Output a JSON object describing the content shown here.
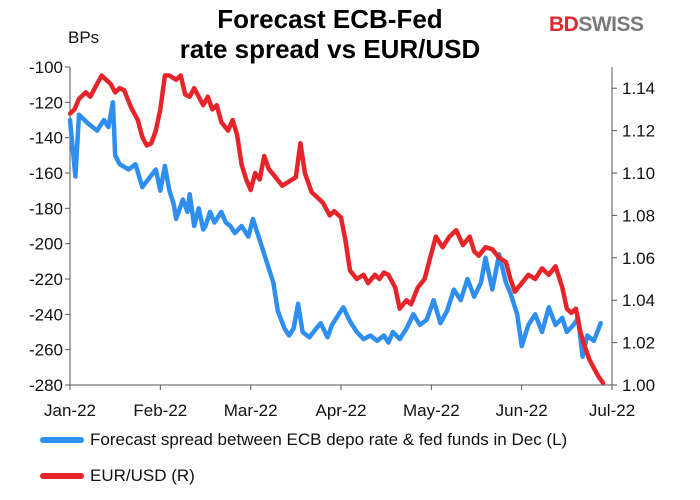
{
  "header": {
    "title_line1": "Forecast ECB-Fed",
    "title_line2": "rate spread vs EUR/USD",
    "unit_label": "BPs"
  },
  "logo": {
    "part1": "BD",
    "part2": "SWISS"
  },
  "chart_data": {
    "type": "line",
    "title": "Forecast ECB-Fed rate spread vs EUR/USD",
    "ylabel_left": "BPs",
    "x_ticks": [
      "Jan-22",
      "Feb-22",
      "Mar-22",
      "Apr-22",
      "May-22",
      "Jun-22",
      "Jul-22"
    ],
    "y_left": {
      "min": -280,
      "max": -100,
      "ticks": [
        -100,
        -120,
        -140,
        -160,
        -180,
        -200,
        -220,
        -240,
        -260,
        -280
      ]
    },
    "y_right": {
      "min": 1.0,
      "max": 1.15,
      "ticks": [
        "1.14",
        "1.12",
        "1.10",
        "1.08",
        "1.06",
        "1.04",
        "1.02",
        "1.00"
      ]
    },
    "grid": false,
    "legend_position": "bottom",
    "colors": {
      "spread": "#2f8ff0",
      "eurusd": "#e8242b"
    },
    "series": [
      {
        "name": "Forecast spread between ECB depo rate & fed funds in Dec (L)",
        "axis": "left",
        "color": "#2f8ff0",
        "points": [
          [
            0.0,
            -130
          ],
          [
            0.12,
            -162
          ],
          [
            0.2,
            -127
          ],
          [
            0.4,
            -132
          ],
          [
            0.6,
            -136
          ],
          [
            0.75,
            -130
          ],
          [
            0.85,
            -134
          ],
          [
            0.95,
            -120
          ],
          [
            1.0,
            -150
          ],
          [
            1.1,
            -155
          ],
          [
            1.3,
            -158
          ],
          [
            1.45,
            -155
          ],
          [
            1.6,
            -168
          ],
          [
            1.75,
            -163
          ],
          [
            1.9,
            -158
          ],
          [
            2.0,
            -170
          ],
          [
            2.1,
            -156
          ],
          [
            2.2,
            -170
          ],
          [
            2.3,
            -178
          ],
          [
            2.35,
            -186
          ],
          [
            2.5,
            -175
          ],
          [
            2.6,
            -182
          ],
          [
            2.65,
            -172
          ],
          [
            2.75,
            -190
          ],
          [
            2.85,
            -180
          ],
          [
            2.95,
            -192
          ],
          [
            3.0,
            -190
          ],
          [
            3.1,
            -182
          ],
          [
            3.2,
            -188
          ],
          [
            3.35,
            -182
          ],
          [
            3.45,
            -188
          ],
          [
            3.55,
            -190
          ],
          [
            3.65,
            -194
          ],
          [
            3.8,
            -190
          ],
          [
            3.95,
            -196
          ],
          [
            4.05,
            -186
          ],
          [
            4.2,
            -198
          ],
          [
            4.35,
            -210
          ],
          [
            4.5,
            -222
          ],
          [
            4.6,
            -238
          ],
          [
            4.75,
            -248
          ],
          [
            4.85,
            -252
          ],
          [
            4.95,
            -248
          ],
          [
            5.05,
            -234
          ],
          [
            5.15,
            -250
          ],
          [
            5.3,
            -253
          ],
          [
            5.45,
            -248
          ],
          [
            5.55,
            -245
          ],
          [
            5.7,
            -253
          ],
          [
            5.8,
            -246
          ],
          [
            5.95,
            -240
          ],
          [
            6.05,
            -236
          ],
          [
            6.2,
            -244
          ],
          [
            6.35,
            -250
          ],
          [
            6.5,
            -254
          ],
          [
            6.65,
            -252
          ],
          [
            6.8,
            -255
          ],
          [
            6.95,
            -252
          ],
          [
            7.05,
            -256
          ],
          [
            7.15,
            -250
          ],
          [
            7.3,
            -254
          ],
          [
            7.45,
            -248
          ],
          [
            7.6,
            -240
          ],
          [
            7.75,
            -246
          ],
          [
            7.9,
            -243
          ],
          [
            8.05,
            -232
          ],
          [
            8.2,
            -245
          ],
          [
            8.35,
            -238
          ],
          [
            8.5,
            -226
          ],
          [
            8.65,
            -232
          ],
          [
            8.8,
            -220
          ],
          [
            8.95,
            -230
          ],
          [
            9.1,
            -222
          ],
          [
            9.2,
            -208
          ],
          [
            9.35,
            -226
          ],
          [
            9.5,
            -206
          ],
          [
            9.65,
            -222
          ],
          [
            9.75,
            -228
          ],
          [
            9.9,
            -240
          ],
          [
            10.0,
            -258
          ],
          [
            10.15,
            -246
          ],
          [
            10.3,
            -240
          ],
          [
            10.45,
            -250
          ],
          [
            10.6,
            -236
          ],
          [
            10.75,
            -246
          ],
          [
            10.9,
            -242
          ],
          [
            11.0,
            -250
          ],
          [
            11.15,
            -246
          ],
          [
            11.25,
            -242
          ],
          [
            11.35,
            -264
          ],
          [
            11.45,
            -252
          ],
          [
            11.6,
            -255
          ],
          [
            11.75,
            -245
          ]
        ]
      },
      {
        "name": "EUR/USD (R)",
        "axis": "right",
        "color": "#e8242b",
        "points": [
          [
            0.0,
            1.128
          ],
          [
            0.1,
            1.13
          ],
          [
            0.2,
            1.135
          ],
          [
            0.35,
            1.138
          ],
          [
            0.45,
            1.136
          ],
          [
            0.55,
            1.14
          ],
          [
            0.7,
            1.146
          ],
          [
            0.8,
            1.144
          ],
          [
            0.9,
            1.142
          ],
          [
            1.0,
            1.138
          ],
          [
            1.1,
            1.14
          ],
          [
            1.2,
            1.139
          ],
          [
            1.35,
            1.131
          ],
          [
            1.5,
            1.125
          ],
          [
            1.6,
            1.117
          ],
          [
            1.7,
            1.113
          ],
          [
            1.8,
            1.114
          ],
          [
            1.9,
            1.12
          ],
          [
            2.0,
            1.13
          ],
          [
            2.1,
            1.146
          ],
          [
            2.2,
            1.146
          ],
          [
            2.35,
            1.144
          ],
          [
            2.45,
            1.146
          ],
          [
            2.55,
            1.137
          ],
          [
            2.65,
            1.136
          ],
          [
            2.75,
            1.14
          ],
          [
            2.85,
            1.136
          ],
          [
            2.95,
            1.132
          ],
          [
            3.05,
            1.136
          ],
          [
            3.15,
            1.13
          ],
          [
            3.25,
            1.132
          ],
          [
            3.35,
            1.124
          ],
          [
            3.5,
            1.12
          ],
          [
            3.6,
            1.125
          ],
          [
            3.7,
            1.118
          ],
          [
            3.8,
            1.104
          ],
          [
            3.9,
            1.097
          ],
          [
            4.0,
            1.092
          ],
          [
            4.1,
            1.1
          ],
          [
            4.2,
            1.097
          ],
          [
            4.3,
            1.108
          ],
          [
            4.4,
            1.102
          ],
          [
            4.55,
            1.098
          ],
          [
            4.7,
            1.094
          ],
          [
            4.85,
            1.096
          ],
          [
            5.0,
            1.098
          ],
          [
            5.1,
            1.114
          ],
          [
            5.2,
            1.1
          ],
          [
            5.35,
            1.091
          ],
          [
            5.5,
            1.088
          ],
          [
            5.6,
            1.086
          ],
          [
            5.75,
            1.08
          ],
          [
            5.85,
            1.082
          ],
          [
            6.0,
            1.079
          ],
          [
            6.1,
            1.068
          ],
          [
            6.2,
            1.054
          ],
          [
            6.35,
            1.05
          ],
          [
            6.5,
            1.052
          ],
          [
            6.6,
            1.048
          ],
          [
            6.75,
            1.052
          ],
          [
            6.85,
            1.05
          ],
          [
            6.95,
            1.053
          ],
          [
            7.05,
            1.052
          ],
          [
            7.2,
            1.046
          ],
          [
            7.3,
            1.036
          ],
          [
            7.45,
            1.04
          ],
          [
            7.55,
            1.038
          ],
          [
            7.7,
            1.046
          ],
          [
            7.85,
            1.05
          ],
          [
            8.0,
            1.062
          ],
          [
            8.1,
            1.07
          ],
          [
            8.25,
            1.065
          ],
          [
            8.4,
            1.07
          ],
          [
            8.55,
            1.073
          ],
          [
            8.7,
            1.066
          ],
          [
            8.85,
            1.07
          ],
          [
            8.95,
            1.063
          ],
          [
            9.05,
            1.061
          ],
          [
            9.2,
            1.065
          ],
          [
            9.35,
            1.064
          ],
          [
            9.5,
            1.06
          ],
          [
            9.65,
            1.058
          ],
          [
            9.75,
            1.05
          ],
          [
            9.85,
            1.044
          ],
          [
            10.0,
            1.048
          ],
          [
            10.15,
            1.052
          ],
          [
            10.3,
            1.05
          ],
          [
            10.45,
            1.055
          ],
          [
            10.6,
            1.052
          ],
          [
            10.75,
            1.056
          ],
          [
            10.9,
            1.046
          ],
          [
            11.0,
            1.036
          ],
          [
            11.1,
            1.034
          ],
          [
            11.2,
            1.036
          ],
          [
            11.3,
            1.025
          ],
          [
            11.4,
            1.018
          ],
          [
            11.5,
            1.012
          ],
          [
            11.6,
            1.008
          ],
          [
            11.7,
            1.004
          ],
          [
            11.8,
            1.001
          ]
        ]
      }
    ]
  }
}
